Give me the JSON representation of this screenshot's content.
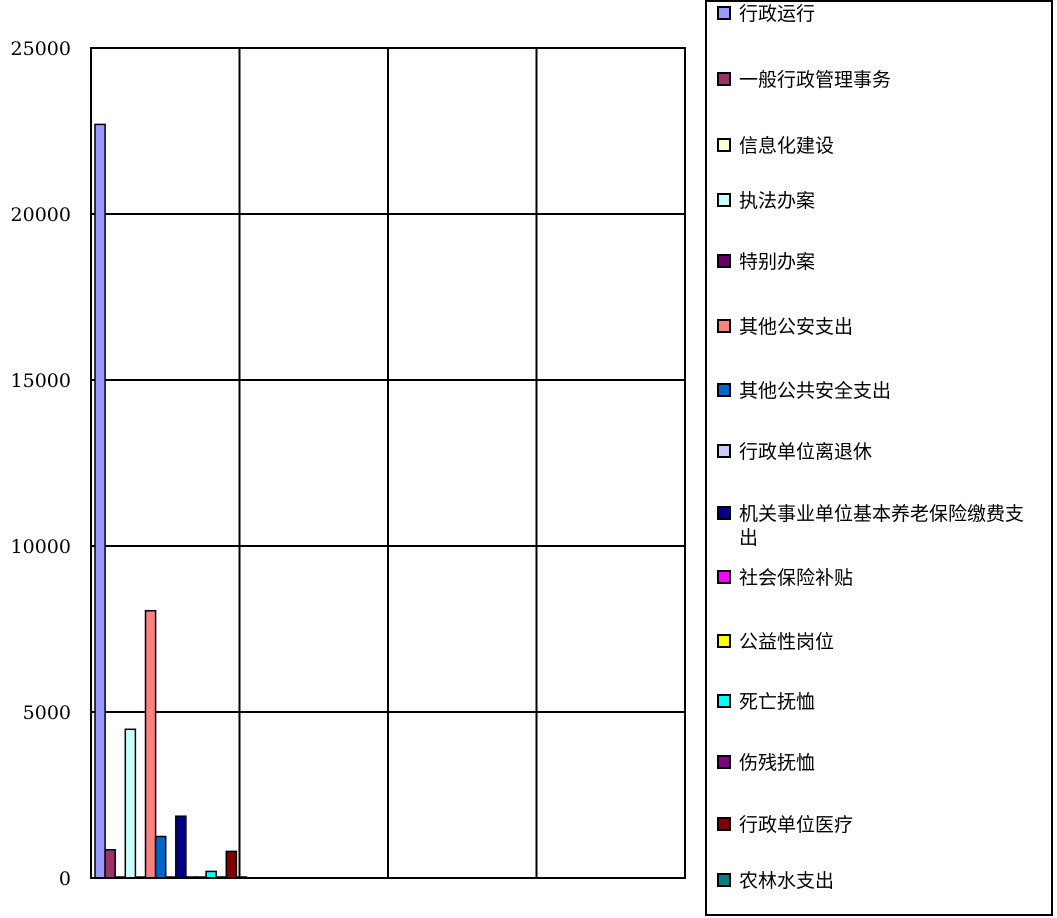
{
  "chart_data": {
    "type": "bar",
    "title": "",
    "xlabel": "",
    "ylabel": "",
    "ylim": [
      0,
      25000
    ],
    "yticks": [
      0,
      5000,
      10000,
      15000,
      20000,
      25000
    ],
    "grid": true,
    "legend_position": "right",
    "categories": [
      ""
    ],
    "series": [
      {
        "name": "行政运行",
        "values": [
          22700
        ],
        "color": "#9999ff"
      },
      {
        "name": "一般行政管理事务",
        "values": [
          850
        ],
        "color": "#993366"
      },
      {
        "name": "信息化建设",
        "values": [
          0
        ],
        "color": "#ffffcc"
      },
      {
        "name": "执法办案",
        "values": [
          4480
        ],
        "color": "#ccffff"
      },
      {
        "name": "特别办案",
        "values": [
          0
        ],
        "color": "#660066"
      },
      {
        "name": "其他公安支出",
        "values": [
          8050
        ],
        "color": "#ff8080"
      },
      {
        "name": "其他公共安全支出",
        "values": [
          1250
        ],
        "color": "#0066cc"
      },
      {
        "name": "行政单位离退休",
        "values": [
          0
        ],
        "color": "#ccccff"
      },
      {
        "name": "机关事业单位基本养老保险缴费支出",
        "values": [
          1860
        ],
        "color": "#000080"
      },
      {
        "name": "社会保险补贴",
        "values": [
          0
        ],
        "color": "#ff00ff"
      },
      {
        "name": "公益性岗位",
        "values": [
          0
        ],
        "color": "#ffff00"
      },
      {
        "name": "死亡抚恤",
        "values": [
          200
        ],
        "color": "#00ffff"
      },
      {
        "name": "伤残抚恤",
        "values": [
          0
        ],
        "color": "#800080"
      },
      {
        "name": "行政单位医疗",
        "values": [
          800
        ],
        "color": "#800000"
      },
      {
        "name": "农林水支出",
        "values": [
          0
        ],
        "color": "#008080"
      }
    ]
  }
}
